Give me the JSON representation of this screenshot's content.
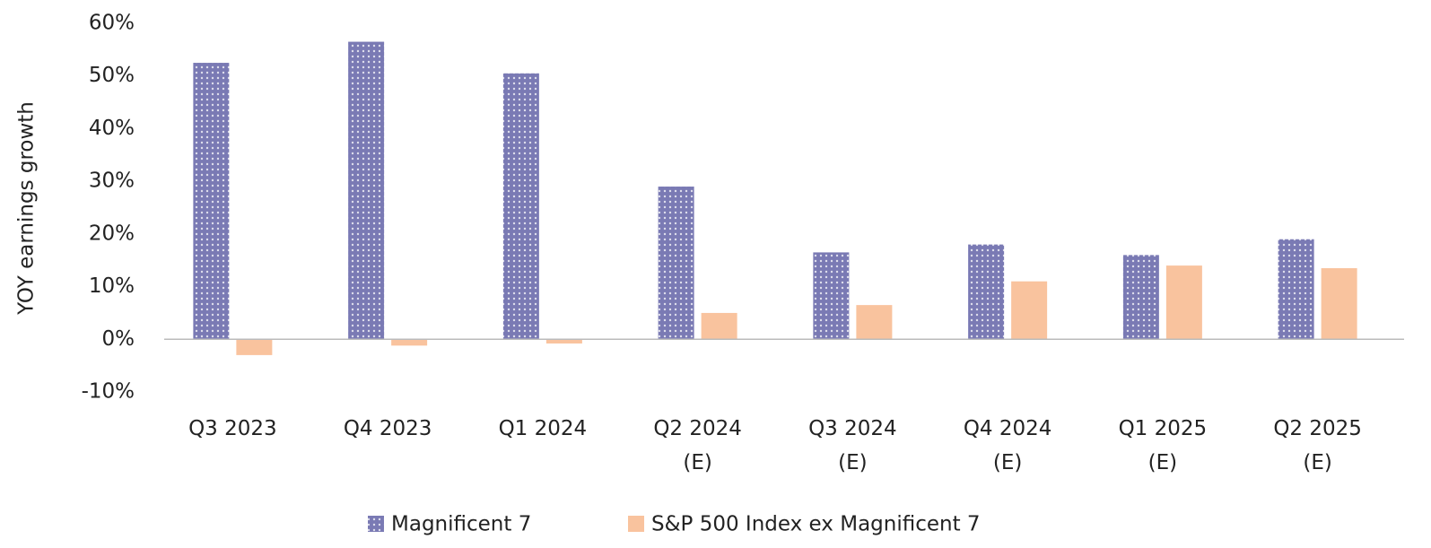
{
  "chart_data": {
    "type": "bar",
    "y_label": "YOY earnings growth",
    "categories": [
      "Q3 2023",
      "Q4 2023",
      "Q1 2024",
      "Q2 2024\n(E)",
      "Q3 2024\n(E)",
      "Q4 2024\n(E)",
      "Q1 2025\n(E)",
      "Q2 2025\n(E)"
    ],
    "series": [
      {
        "name": "Magnificent 7",
        "color": "#7a7ab4",
        "pattern": "dotted",
        "values": [
          52.5,
          56.5,
          50.5,
          29,
          16.5,
          18,
          16,
          19
        ]
      },
      {
        "name": "S&P 500 Index ex Magnificent 7",
        "color": "#f9c39e",
        "values": [
          -3,
          -1.2,
          -0.8,
          5,
          6.5,
          11,
          14,
          13.5
        ]
      }
    ],
    "ylim": [
      -10,
      60
    ],
    "yticks": [
      {
        "value": -10,
        "label": "-10%"
      },
      {
        "value": 0,
        "label": "0%"
      },
      {
        "value": 10,
        "label": "10%"
      },
      {
        "value": 20,
        "label": "20%"
      },
      {
        "value": 30,
        "label": "30%"
      },
      {
        "value": 40,
        "label": "40%"
      },
      {
        "value": 50,
        "label": "50%"
      },
      {
        "value": 60,
        "label": "60%"
      }
    ],
    "grid": false,
    "legend": "bottom"
  }
}
